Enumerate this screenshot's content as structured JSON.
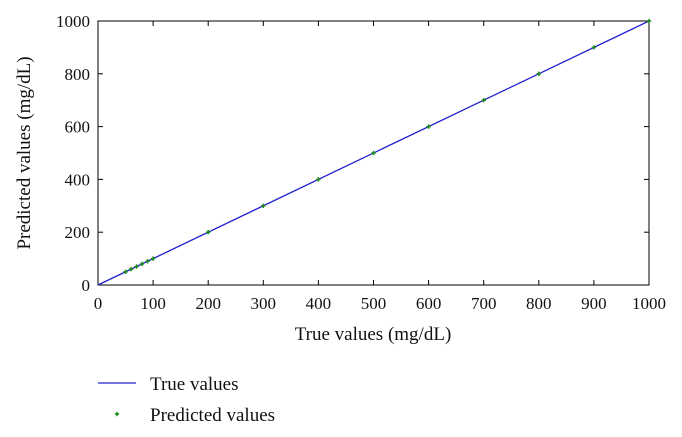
{
  "chart_data": {
    "type": "line",
    "xlabel": "True values (mg/dL)",
    "ylabel": "Predicted values (mg/dL)",
    "xlim": [
      0,
      1000
    ],
    "ylim": [
      0,
      1000
    ],
    "x_ticks": [
      0,
      100,
      200,
      300,
      400,
      500,
      600,
      700,
      800,
      900,
      1000
    ],
    "y_ticks": [
      0,
      200,
      400,
      600,
      800,
      1000
    ],
    "grid": false,
    "legend_position": "bottom-left, below plot",
    "series": [
      {
        "name": "True values",
        "style": "line",
        "color": "#1f1fcf",
        "x": [
          0,
          1000
        ],
        "y": [
          0,
          1000
        ]
      },
      {
        "name": "Predicted values",
        "style": "markers",
        "color": "#1a8a1a",
        "x": [
          50,
          60,
          70,
          80,
          90,
          100,
          200,
          300,
          400,
          500,
          600,
          700,
          800,
          900,
          1000
        ],
        "y": [
          50,
          60,
          70,
          80,
          90,
          100,
          200,
          300,
          400,
          500,
          600,
          700,
          800,
          900,
          1000
        ]
      }
    ]
  }
}
